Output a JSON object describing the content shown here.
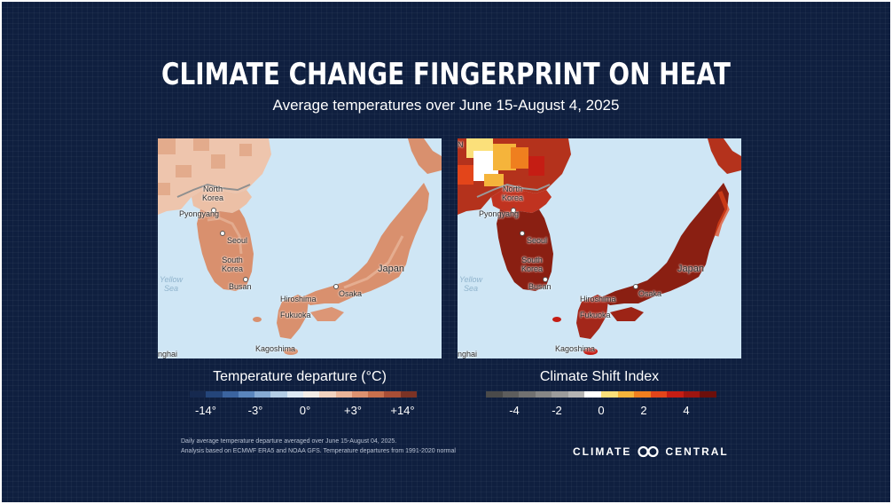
{
  "title": "CLIMATE CHANGE FINGERPRINT ON HEAT",
  "subtitle": "Average temperatures over June 15-August 4, 2025",
  "maps": {
    "left": {
      "labels": {
        "north_korea": "North\nKorea",
        "pyongyang": "Pyongyang",
        "seoul": "Seoul",
        "south_korea": "South\nKorea",
        "busan": "Busan",
        "hiroshima": "Hiroshima",
        "osaka": "Osaka",
        "fukuoka": "Fukuoka",
        "kagoshima": "Kagoshima",
        "japan": "Japan",
        "yellow_sea": "Yellow\nSea",
        "shanghai": "nghai"
      }
    },
    "right": {
      "labels": {
        "north_korea": "North\nKorea",
        "pyongyang": "Pyongyang",
        "seoul": "Seoul",
        "south_korea": "South\nKorea",
        "busan": "Busan",
        "hiroshima": "Hiroshima",
        "osaka": "Osaka",
        "fukuoka": "Fukuoka",
        "kagoshima": "Kagoshima",
        "japan": "Japan",
        "yellow_sea": "Yellow\nSea",
        "shanghai": "nghai",
        "top_fragment": "N"
      }
    }
  },
  "legends": {
    "temperature": {
      "title": "Temperature departure (°C)",
      "ticks": [
        "-14°",
        "-3°",
        "0°",
        "+3°",
        "+14°"
      ],
      "colors": [
        "#16294f",
        "#24457a",
        "#3b64a0",
        "#5a85bd",
        "#86aad3",
        "#b3cde6",
        "#dce8f3",
        "#f3ece6",
        "#f2d3c0",
        "#ebb599",
        "#de9270",
        "#c8704d",
        "#a84e36",
        "#7c3325"
      ]
    },
    "csi": {
      "title": "Climate Shift Index",
      "ticks": [
        "-4",
        "-2",
        "0",
        "2",
        "4"
      ],
      "colors": [
        "#4a4a4a",
        "#5d5d5d",
        "#717171",
        "#868686",
        "#9c9c9c",
        "#b4b4b4",
        "#ffffff",
        "#fbe07a",
        "#f5b43b",
        "#ef7f1f",
        "#e3451a",
        "#c51d14",
        "#9d1510",
        "#6c0f0b"
      ]
    }
  },
  "notes": {
    "line1": "Daily average temperature departure averaged over June 15-August 04, 2025.",
    "line2": "Analysis based on ECMWF ERA5 and NOAA GFS. Temperature departures from 1991-2020 normal"
  },
  "brand": {
    "left": "CLIMATE",
    "right": "CENTRAL"
  },
  "colors": {
    "background": "#0f1f3f",
    "sea": "#cfe6f5",
    "left_land": "#d9906e",
    "left_land_pale": "#eec5ad",
    "right_land": "#b4321c",
    "right_land_dark": "#8a1f12"
  }
}
